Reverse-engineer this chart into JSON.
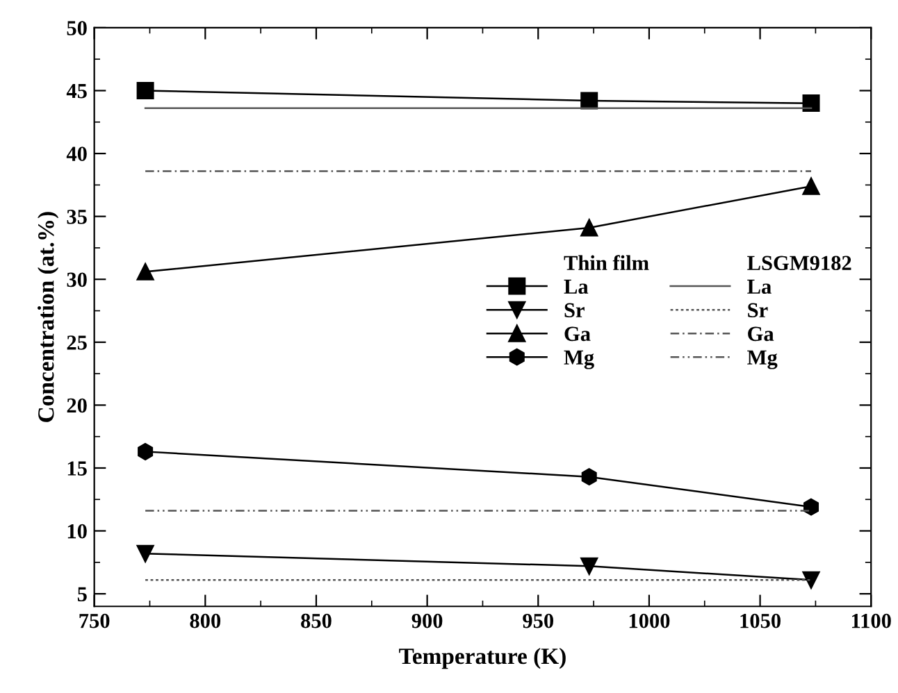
{
  "chart_data": {
    "type": "line",
    "xlabel": "Temperature (K)",
    "ylabel": "Concentration (at.%)",
    "xlim": [
      750,
      1100
    ],
    "xticks": [
      750,
      800,
      850,
      900,
      950,
      1000,
      1050,
      1100
    ],
    "ylim": [
      4,
      50
    ],
    "yticks": [
      5,
      10,
      15,
      20,
      25,
      30,
      35,
      40,
      45,
      50
    ],
    "grid": false,
    "legend": "right",
    "legend_title": [
      "Thin film",
      "LSGM9182"
    ],
    "series": [
      {
        "name": "La",
        "color": "#000000",
        "marker": "square",
        "line_style": "solid",
        "x": [
          773,
          973,
          1073
        ],
        "values": [
          45.0,
          44.2,
          44.0
        ]
      },
      {
        "name": "Sr",
        "color": "#000000",
        "marker": "triangle_down",
        "line_style": "solid",
        "x": [
          773,
          973,
          1073
        ],
        "values": [
          8.2,
          7.2,
          6.1
        ]
      },
      {
        "name": "Ga",
        "color": "#000000",
        "marker": "triangle",
        "line_style": "solid",
        "x": [
          773,
          973,
          1073
        ],
        "values": [
          30.6,
          34.1,
          37.4
        ]
      },
      {
        "name": "Mg",
        "color": "#000000",
        "marker": "circle",
        "line_style": "solid",
        "x": [
          773,
          973,
          1073
        ],
        "values": [
          16.3,
          14.3,
          11.9
        ]
      },
      {
        "name": "La",
        "color": "#555555",
        "marker": "none",
        "line_style": "solid",
        "x": [
          773,
          1073
        ],
        "values": [
          43.6,
          43.6
        ]
      },
      {
        "name": "Sr",
        "color": "#555555",
        "marker": "none",
        "line_style": "dotted",
        "x": [
          773,
          1073
        ],
        "values": [
          6.1,
          6.1
        ]
      },
      {
        "name": "Ga",
        "color": "#555555",
        "marker": "none",
        "line_style": "dashdot",
        "x": [
          773,
          1073
        ],
        "values": [
          38.6,
          38.6
        ]
      },
      {
        "name": "Mg",
        "color": "#555555",
        "marker": "none",
        "line_style": "dashdotdot",
        "x": [
          773,
          1073
        ],
        "values": [
          11.6,
          11.6
        ]
      }
    ]
  }
}
